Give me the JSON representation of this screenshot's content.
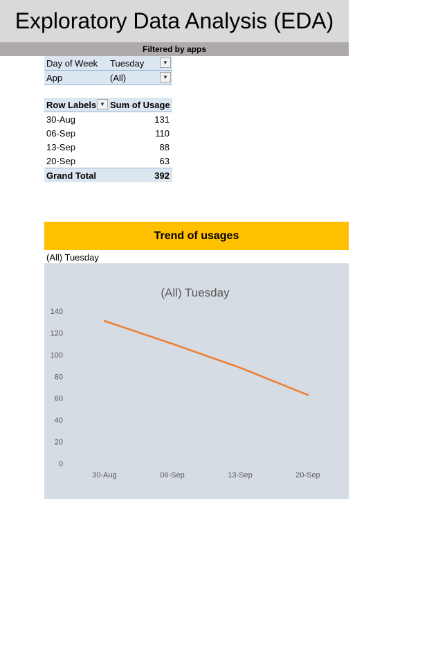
{
  "header": {
    "title": "Exploratory Data Analysis (EDA)",
    "subtitle": "Filtered by apps"
  },
  "filters": [
    {
      "label": "Day of Week",
      "value": "Tuesday"
    },
    {
      "label": "App",
      "value": "(All)"
    }
  ],
  "pivot": {
    "headers": [
      "Row Labels",
      "Sum of Usage"
    ],
    "rows": [
      {
        "label": "30-Aug",
        "value": "131"
      },
      {
        "label": "06-Sep",
        "value": "110"
      },
      {
        "label": "13-Sep",
        "value": "88"
      },
      {
        "label": "20-Sep",
        "value": "63"
      }
    ],
    "total": {
      "label": "Grand Total",
      "value": "392"
    }
  },
  "trend": {
    "title": "Trend of usages",
    "subtitle": "(All) Tuesday"
  },
  "colors": {
    "line": "#ed7d31",
    "chart_bg": "#d6dce4",
    "accent": "#ffc000"
  },
  "chart_data": {
    "type": "line",
    "title": "(All) Tuesday",
    "categories": [
      "30-Aug",
      "06-Sep",
      "13-Sep",
      "20-Sep"
    ],
    "series": [
      {
        "values": [
          131,
          110,
          88,
          63
        ]
      }
    ],
    "ylim": [
      0,
      140
    ],
    "yticks": [
      0,
      20,
      40,
      60,
      80,
      100,
      120,
      140
    ],
    "grid": false,
    "legend": "none"
  }
}
